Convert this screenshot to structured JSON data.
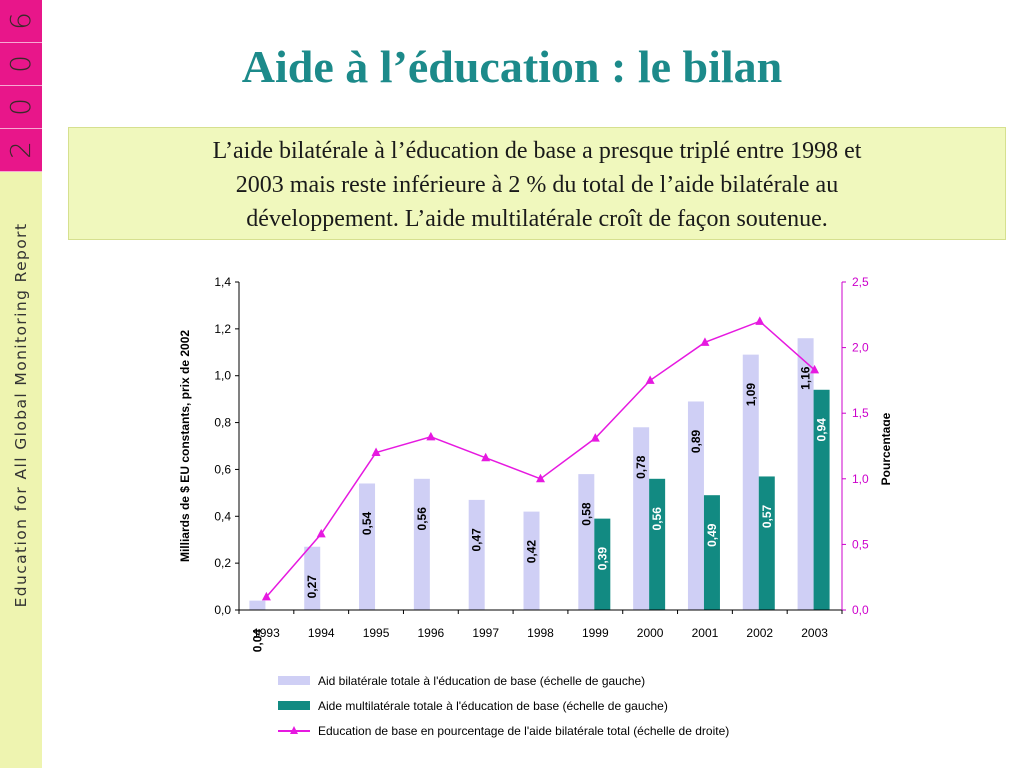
{
  "sidebar": {
    "year_digits": [
      "6",
      "0",
      "0",
      "2"
    ],
    "report_name": "Education for All Global Monitoring Report"
  },
  "slide": {
    "title": "Aide à l’éducation : le bilan",
    "intro_lines": [
      "L’aide bilatérale à l’éducation de base a presque triplé entre 1998 et",
      "2003 mais reste inférieure à 2 % du total de l’aide bilatérale au",
      "développement. L’aide multilatérale croît de façon soutenue."
    ]
  },
  "chart_data": {
    "type": "bar",
    "categories": [
      "1993",
      "1994",
      "1995",
      "1996",
      "1997",
      "1998",
      "1999",
      "2000",
      "2001",
      "2002",
      "2003"
    ],
    "series": [
      {
        "name": "Aid bilatérale totale à l'éducation de base (échelle de gauche)",
        "kind": "bar",
        "axis": "left",
        "color": "#cfcff5",
        "values": [
          0.04,
          0.27,
          0.54,
          0.56,
          0.47,
          0.42,
          0.58,
          0.78,
          0.89,
          1.09,
          1.16
        ],
        "labels": [
          "0,04",
          "0,27",
          "0,54",
          "0,56",
          "0,47",
          "0,42",
          "0,58",
          "0,78",
          "0,89",
          "1,09",
          "1,16"
        ]
      },
      {
        "name": "Aide multilatérale totale à l'éducation de base (échelle de gauche)",
        "kind": "bar",
        "axis": "left",
        "color": "#128a82",
        "values": [
          null,
          null,
          null,
          null,
          null,
          null,
          0.39,
          0.56,
          0.49,
          0.57,
          0.94
        ],
        "labels": [
          "",
          "",
          "",
          "",
          "",
          "",
          "0,39",
          "0,56",
          "0,49",
          "0,57",
          "0,94"
        ]
      },
      {
        "name": "Education de base en pourcentage de l'aide bilatérale total (échelle de droite)",
        "kind": "line",
        "axis": "right",
        "color": "#e619e0",
        "values": [
          0.1,
          0.58,
          1.2,
          1.32,
          1.16,
          1.0,
          1.31,
          1.75,
          2.04,
          2.2,
          1.83
        ]
      }
    ],
    "ylabel": "Milliards de $ EU constants, prix de 2002",
    "ylim": [
      0,
      1.4
    ],
    "yticks": [
      "0,0",
      "0,2",
      "0,4",
      "0,6",
      "0,8",
      "1,0",
      "1,2",
      "1,4"
    ],
    "y2label": "Pourcentage",
    "y2lim": [
      0,
      2.5
    ],
    "y2ticks": [
      "0,0",
      "0,5",
      "1,0",
      "1,5",
      "2,0",
      "2,5"
    ],
    "grid": false,
    "legend_position": "bottom"
  }
}
